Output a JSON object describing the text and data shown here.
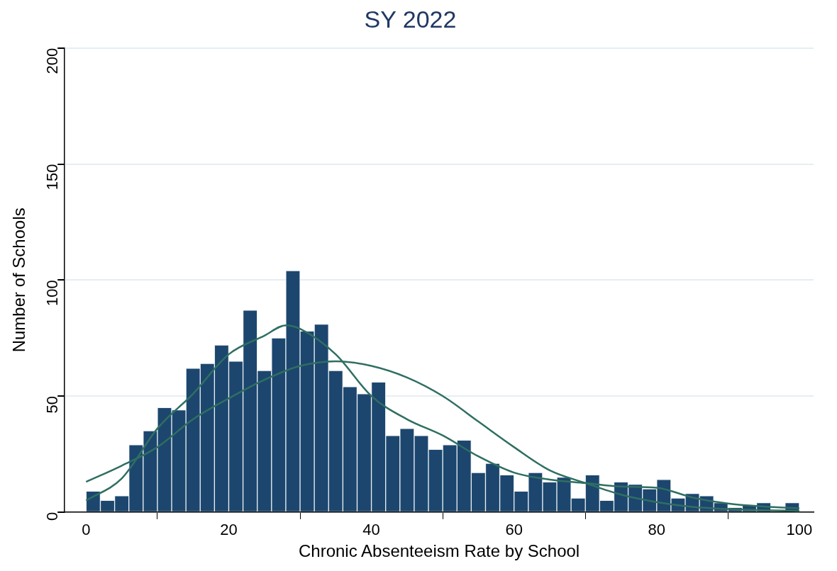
{
  "chart_data": {
    "type": "histogram",
    "title": "SY 2022",
    "xlabel": "Chronic Absenteeism Rate by School",
    "ylabel": "Number of Schools",
    "xlim": [
      -3,
      102
    ],
    "xticks": [
      0,
      20,
      40,
      60,
      80,
      100
    ],
    "ylim": [
      0,
      200
    ],
    "yticks": [
      0,
      50,
      100,
      150,
      200
    ],
    "grid": "y",
    "marker": "none",
    "line_style": "solid",
    "series": [
      {
        "type": "histogram",
        "color": "#1c466e",
        "bins": [
          0,
          2,
          4,
          6,
          8,
          10,
          12,
          14,
          16,
          18,
          20,
          22,
          24,
          26,
          28,
          30,
          32,
          34,
          36,
          38,
          40,
          42,
          44,
          46,
          48,
          50,
          52,
          54,
          56,
          58,
          60,
          62,
          64,
          66,
          68,
          70,
          72,
          74,
          76,
          78,
          80,
          82,
          84,
          86,
          88,
          90,
          92,
          94,
          96,
          98,
          100
        ],
        "values": [
          9,
          5,
          7,
          29,
          35,
          45,
          44,
          62,
          64,
          72,
          65,
          87,
          61,
          75,
          104,
          78,
          81,
          61,
          54,
          51,
          56,
          33,
          36,
          33,
          27,
          29,
          31,
          17,
          21,
          16,
          9,
          17,
          13,
          15,
          6,
          16,
          5,
          13,
          12,
          10,
          14,
          6,
          8,
          7,
          4,
          2,
          3,
          4,
          0,
          4
        ]
      },
      {
        "type": "line",
        "color": "#2f6f62",
        "x": [
          0,
          5,
          10,
          15,
          20,
          25,
          28,
          30,
          35,
          40,
          45,
          50,
          55,
          60,
          65,
          70,
          75,
          80,
          85,
          90,
          95,
          100
        ],
        "values": [
          5,
          14.5,
          36,
          51,
          68,
          76,
          80.5,
          79,
          68,
          50,
          40,
          33,
          24,
          17,
          14,
          12.5,
          11,
          10.5,
          6.3,
          3.7,
          2.4,
          1.6
        ]
      },
      {
        "type": "line",
        "color": "#2f6f62",
        "x": [
          0,
          5,
          10,
          15,
          20,
          25,
          30,
          35,
          40,
          45,
          50,
          55,
          60,
          65,
          70,
          75,
          80,
          85,
          90,
          95,
          100
        ],
        "values": [
          13,
          20,
          28,
          40,
          49,
          57,
          63,
          65,
          63,
          58,
          50,
          39,
          28,
          18,
          12.5,
          7.5,
          4.3,
          2.2,
          1.3,
          0.8,
          0.5
        ]
      }
    ]
  }
}
